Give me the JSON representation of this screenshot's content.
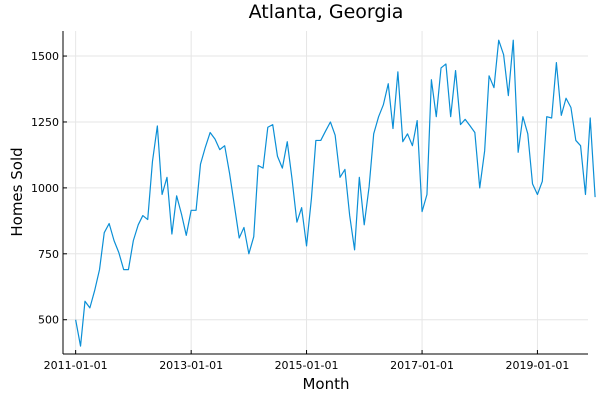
{
  "chart_data": {
    "type": "line",
    "title": "Atlanta, Georgia",
    "xlabel": "Month",
    "ylabel": "Homes Sold",
    "grid": true,
    "legend": "none",
    "line_color": "#0b8fd6",
    "x_start": "2011-01",
    "x_frequency": "monthly",
    "xlim": [
      "2010-10-13",
      "2019-11-17"
    ],
    "ylim": [
      370,
      1595
    ],
    "x_ticks": [
      "2011-01-01",
      "2013-01-01",
      "2015-01-01",
      "2017-01-01",
      "2019-01-01"
    ],
    "y_ticks": [
      500,
      750,
      1000,
      1250,
      1500
    ],
    "y_tick_labels": [
      "500",
      "750",
      "1000",
      "1250",
      "1500"
    ],
    "series": [
      {
        "values": [
          500,
          400,
          570,
          545,
          610,
          690,
          830,
          865,
          800,
          755,
          690,
          690,
          800,
          860,
          895,
          880,
          1100,
          1235,
          975,
          1040,
          825,
          970,
          900,
          820,
          915,
          915,
          1090,
          1155,
          1210,
          1185,
          1145,
          1160,
          1055,
          935,
          810,
          850,
          750,
          815,
          1085,
          1075,
          1230,
          1240,
          1120,
          1075,
          1175,
          1035,
          870,
          925,
          780,
          960,
          1180,
          1180,
          1215,
          1250,
          1200,
          1040,
          1070,
          895,
          765,
          1040,
          860,
          1005,
          1205,
          1270,
          1315,
          1395,
          1225,
          1440,
          1175,
          1205,
          1160,
          1255,
          910,
          975,
          1410,
          1270,
          1455,
          1470,
          1270,
          1445,
          1240,
          1260,
          1235,
          1210,
          1000,
          1140,
          1425,
          1380,
          1560,
          1505,
          1350,
          1560,
          1135,
          1270,
          1205,
          1015,
          975,
          1025,
          1270,
          1265,
          1475,
          1275,
          1340,
          1305,
          1180,
          1160,
          975,
          1265,
          965
        ]
      }
    ]
  }
}
